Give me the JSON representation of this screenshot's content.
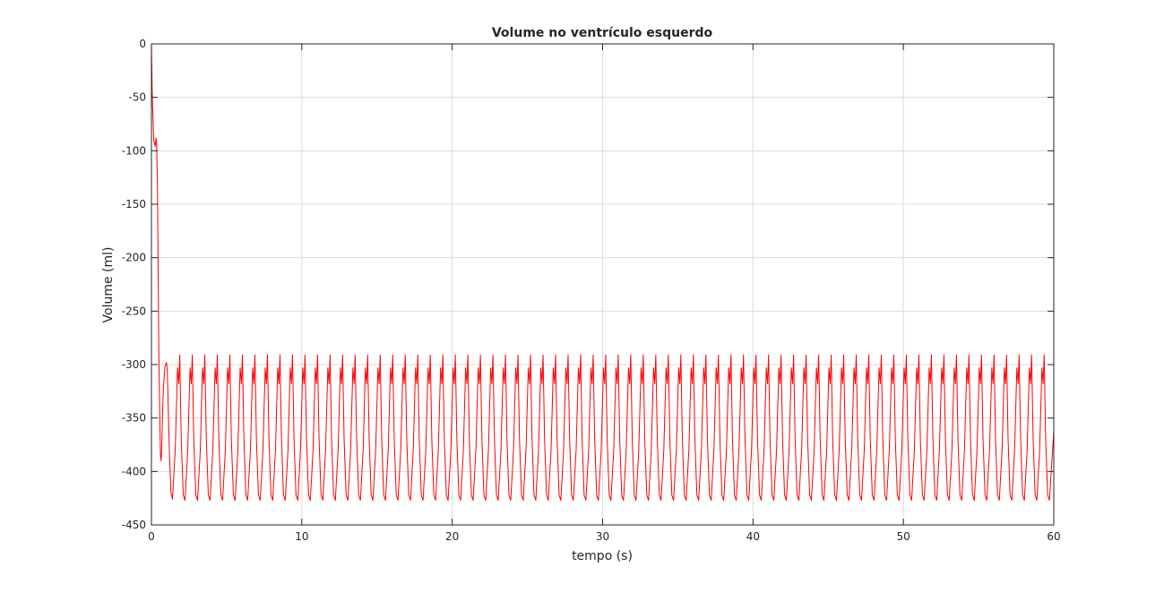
{
  "chart_data": {
    "type": "line",
    "title": "Volume no ventrículo esquerdo",
    "xlabel": "tempo (s)",
    "ylabel": "Volume (ml)",
    "xlim": [
      0,
      60
    ],
    "ylim": [
      -450,
      0
    ],
    "xticks": [
      0,
      10,
      20,
      30,
      40,
      50,
      60
    ],
    "xtick_labels": [
      "0",
      "10",
      "20",
      "30",
      "40",
      "50",
      "60"
    ],
    "yticks": [
      0,
      -50,
      -100,
      -150,
      -200,
      -250,
      -300,
      -350,
      -400,
      -450
    ],
    "ytick_labels": [
      "0",
      "-50",
      "-100",
      "-150",
      "-200",
      "-250",
      "-300",
      "-350",
      "-400",
      "-450"
    ],
    "grid": true,
    "series": [
      {
        "color": "#ff0000",
        "transient": {
          "x": [
            0,
            0.05,
            0.15,
            0.25,
            0.3,
            0.35,
            0.4,
            0.5,
            0.6,
            0.65,
            0.7,
            0.75,
            0.8,
            0.9,
            1.0,
            1.05,
            1.1,
            1.2,
            1.3,
            1.4
          ],
          "y": [
            0,
            -45,
            -90,
            -96,
            -88,
            -95,
            -135,
            -300,
            -385,
            -390,
            -370,
            -340,
            -320,
            -302,
            -298,
            -305,
            -330,
            -385,
            -420,
            -426
          ]
        },
        "steady_state": {
          "period_s": 0.833,
          "max": -303,
          "min": -427,
          "notch": -318,
          "x_start": 1.4,
          "x_end": 60,
          "y_end": -362
        }
      }
    ]
  }
}
